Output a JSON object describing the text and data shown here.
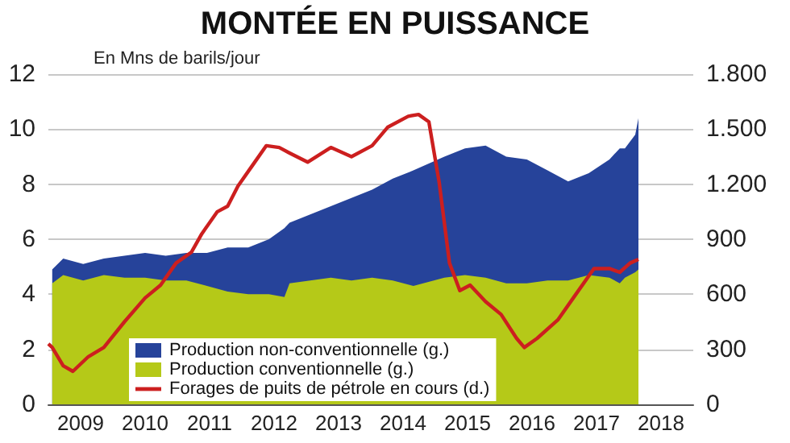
{
  "chart_data": {
    "type": "area",
    "title": "MONTÉE EN PUISSANCE",
    "ylabel": "En Mns de barils/jour",
    "stacked": true,
    "grid": "y",
    "legend": "bottom left",
    "x": [
      2009.06,
      2009.23,
      2009.54,
      2009.86,
      2010.18,
      2010.5,
      2010.82,
      2011.14,
      2011.46,
      2011.78,
      2012.1,
      2012.42,
      2012.66,
      2012.74,
      2013.06,
      2013.38,
      2013.7,
      2014.02,
      2014.34,
      2014.66,
      2015.14,
      2015.46,
      2015.78,
      2016.1,
      2016.42,
      2016.74,
      2017.06,
      2017.38,
      2017.7,
      2017.86,
      2017.94,
      2018.1,
      2018.15
    ],
    "xlim": [
      2009,
      2019
    ],
    "xticks": [
      {
        "value": 2009.5,
        "label": "2009"
      },
      {
        "value": 2010,
        "label": null
      },
      {
        "value": 2010.5,
        "label": "2010"
      },
      {
        "value": 2011,
        "label": null
      },
      {
        "value": 2011.5,
        "label": "2011"
      },
      {
        "value": 2012,
        "label": null
      },
      {
        "value": 2012.5,
        "label": "2012"
      },
      {
        "value": 2013,
        "label": null
      },
      {
        "value": 2013.5,
        "label": "2013"
      },
      {
        "value": 2014,
        "label": null
      },
      {
        "value": 2014.5,
        "label": "2014"
      },
      {
        "value": 2015,
        "label": null
      },
      {
        "value": 2015.5,
        "label": "2015"
      },
      {
        "value": 2016,
        "label": null
      },
      {
        "value": 2016.5,
        "label": "2016"
      },
      {
        "value": 2017,
        "label": null
      },
      {
        "value": 2017.5,
        "label": "2017"
      },
      {
        "value": 2018,
        "label": null
      },
      {
        "value": 2018.5,
        "label": "2018"
      }
    ],
    "ylim": [
      0,
      12
    ],
    "yticks": [
      0,
      2,
      4,
      6,
      8,
      10,
      12
    ],
    "y2lim": [
      0,
      1800
    ],
    "y2ticks": [
      0,
      300,
      600,
      900,
      {
        "value": 1200,
        "label": "1.200"
      },
      {
        "value": 1500,
        "label": "1.500"
      },
      {
        "value": 1800,
        "label": "1.800"
      }
    ],
    "series": [
      {
        "name": "Production conventionnelle (g.)",
        "color": "#b5c918",
        "values": [
          4.4,
          4.7,
          4.5,
          4.7,
          4.6,
          4.6,
          4.5,
          4.5,
          4.3,
          4.1,
          4.0,
          4.0,
          3.9,
          4.4,
          4.5,
          4.6,
          4.5,
          4.6,
          4.5,
          4.3,
          4.6,
          4.7,
          4.6,
          4.4,
          4.4,
          4.5,
          4.5,
          4.7,
          4.6,
          4.4,
          4.6,
          4.8,
          4.9
        ]
      },
      {
        "name": "Production non-conventionnelle (g.)",
        "color": "#26439a",
        "values": [
          0.5,
          0.6,
          0.6,
          0.6,
          0.8,
          0.9,
          0.9,
          1.0,
          1.2,
          1.6,
          1.7,
          2.0,
          2.5,
          2.2,
          2.4,
          2.6,
          3.0,
          3.2,
          3.7,
          4.2,
          4.4,
          4.6,
          4.8,
          4.6,
          4.5,
          4.0,
          3.6,
          3.7,
          4.3,
          4.9,
          4.7,
          5.0,
          5.5
        ]
      },
      {
        "name": "Forages de puits de pétrole en cours (d.)",
        "type": "line",
        "axis": "y2",
        "color": "#cc1f1f",
        "x": [
          2009.0,
          2009.06,
          2009.23,
          2009.38,
          2009.62,
          2009.86,
          2010.18,
          2010.5,
          2010.74,
          2010.98,
          2011.22,
          2011.38,
          2011.62,
          2011.78,
          2011.94,
          2012.18,
          2012.38,
          2012.58,
          2012.74,
          2013.02,
          2013.38,
          2013.7,
          2014.02,
          2014.26,
          2014.58,
          2014.74,
          2014.9,
          2015.06,
          2015.22,
          2015.38,
          2015.54,
          2015.78,
          2016.02,
          2016.26,
          2016.38,
          2016.58,
          2016.9,
          2017.14,
          2017.46,
          2017.7,
          2017.86,
          2018.02,
          2018.15
        ],
        "values": [
          330,
          310,
          210,
          180,
          260,
          310,
          450,
          580,
          650,
          770,
          830,
          930,
          1050,
          1080,
          1190,
          1310,
          1410,
          1400,
          1370,
          1320,
          1400,
          1350,
          1410,
          1510,
          1570,
          1580,
          1540,
          1210,
          770,
          620,
          650,
          560,
          490,
          360,
          310,
          360,
          460,
          580,
          740,
          740,
          720,
          770,
          790
        ]
      }
    ]
  }
}
